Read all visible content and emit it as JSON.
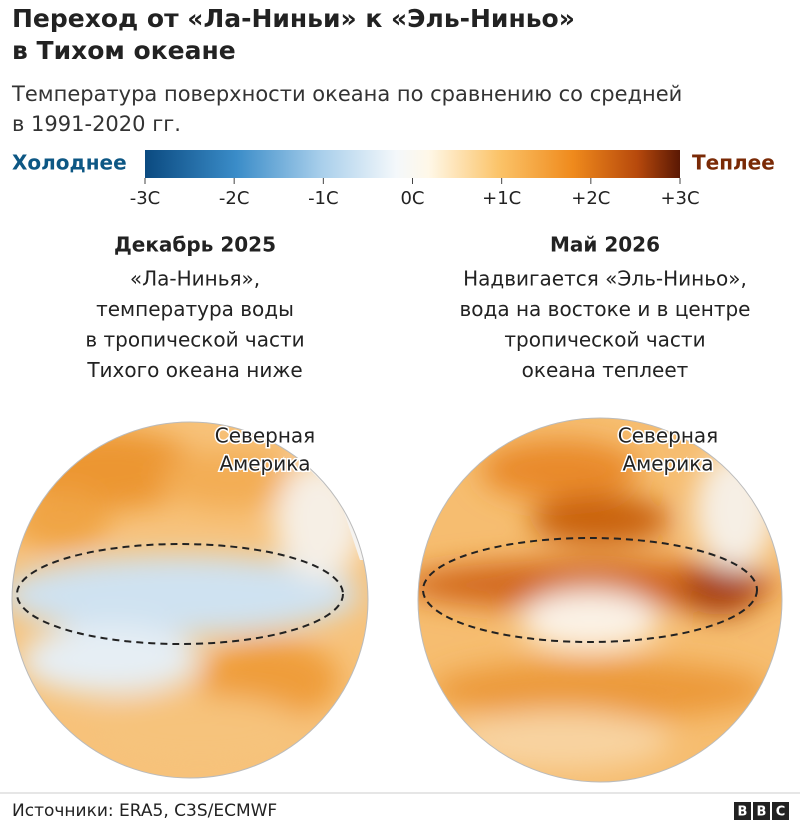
{
  "header": {
    "title_lines": [
      "Переход от «Ла-Ниньи» к «Эль-Ниньо»",
      "в Тихом океане"
    ],
    "subtitle_lines": [
      "Температура поверхности океана по сравнению со средней",
      "в 1991-2020 гг."
    ]
  },
  "legend": {
    "cold_label": "Холоднее",
    "warm_label": "Теплее",
    "ticks": [
      "-3C",
      "-2C",
      "-1C",
      "0C",
      "+1C",
      "+2C",
      "+3C"
    ]
  },
  "panels": [
    {
      "title": "Декабрь 2025",
      "description_lines": [
        "«Ла-Нинья»,",
        "температура воды",
        "в тропической части",
        "Тихого океана ниже"
      ],
      "region_label_lines": [
        "Северная",
        "Америка"
      ]
    },
    {
      "title": "Май 2026",
      "description_lines": [
        "Надвигается «Эль-Ниньо»,",
        "вода на востоке и в центре",
        "тропической части",
        "океана теплеет"
      ],
      "region_label_lines": [
        "Северная",
        "Америка"
      ]
    }
  ],
  "footer": {
    "source": "Источники: ERA5, C3S/ECMWF",
    "logo_letters": [
      "B",
      "B",
      "C"
    ]
  }
}
